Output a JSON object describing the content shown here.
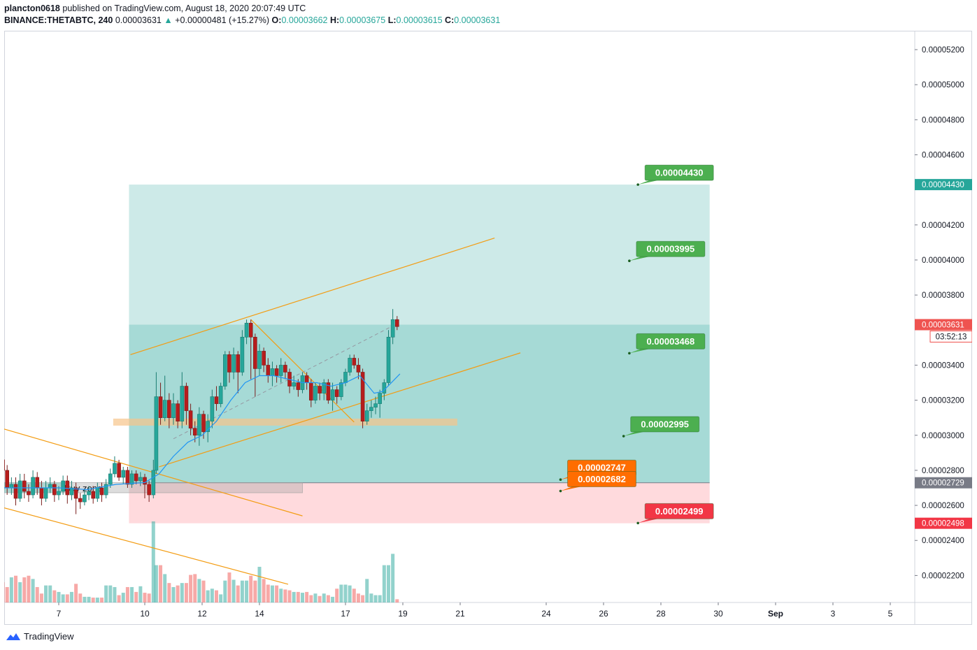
{
  "header": {
    "line1_user": "plancton0618",
    "line1_rest": " published on TradingView.com, August 18, 2020 20:07:49 UTC",
    "symbol": "BINANCE:THETABTC, 240",
    "last": "0.00003631",
    "arrow": "▲",
    "change": "+0.00000481 (+15.27%)",
    "o_label": "O:",
    "o_value": "0.00003662",
    "h_label": "H:",
    "h_value": "0.00003675",
    "l_label": "L:",
    "l_value": "0.00003615",
    "c_label": "C:",
    "c_value": "0.00003631"
  },
  "footer": {
    "brand": "TradingView",
    "logo_icon": "tradingview-logo-icon"
  },
  "colors": {
    "up": "#26a69a",
    "down": "#ef5350",
    "ema": "#2196f3",
    "channel": "#f39c12",
    "target_zone": "#b2dfdb",
    "profit_zone": "#80cbc4",
    "stop_zone": "#ffcdd2",
    "label_green": "#4caf50",
    "label_orange": "#ff6d00",
    "label_red": "#f23645"
  },
  "chart_data": {
    "type": "candlestick",
    "price_axis": {
      "ticks": [
        "0.00005200",
        "0.00005000",
        "0.00004800",
        "0.00004600",
        "0.00004200",
        "0.00004000",
        "0.00003800",
        "0.00003400",
        "0.00003200",
        "0.00003000",
        "0.00002800",
        "0.00002600",
        "0.00002400",
        "0.00002200"
      ],
      "ylim": [
        2e-05,
        5.35e-05
      ]
    },
    "time_axis": {
      "ticks": [
        {
          "label": "7",
          "day": 7
        },
        {
          "label": "10",
          "day": 10
        },
        {
          "label": "12",
          "day": 12
        },
        {
          "label": "14",
          "day": 14
        },
        {
          "label": "17",
          "day": 17
        },
        {
          "label": "19",
          "day": 19
        },
        {
          "label": "21",
          "day": 21
        },
        {
          "label": "24",
          "day": 24
        },
        {
          "label": "26",
          "day": 26
        },
        {
          "label": "28",
          "day": 28
        },
        {
          "label": "30",
          "day": 30
        },
        {
          "label": "Sep",
          "day": 32
        },
        {
          "label": "3",
          "day": 34
        },
        {
          "label": "5",
          "day": 36
        }
      ]
    },
    "price_tags": [
      {
        "label": "0.00004430",
        "price": 4.43e-05,
        "color": "#26a69a"
      },
      {
        "label": "0.00003631",
        "price": 3.631e-05,
        "color": "#ef5350",
        "countdown": "03:52:13"
      },
      {
        "label": "0.00002729",
        "price": 2.729e-05,
        "color": "#787b86"
      },
      {
        "label": "0.00002498",
        "price": 2.498e-05,
        "color": "#f23645"
      }
    ],
    "callouts": [
      {
        "label": "0.00004430",
        "price": 4.43e-05,
        "day": 27.2,
        "color": "#4caf50"
      },
      {
        "label": "0.00003995",
        "price": 3.995e-05,
        "day": 26.9,
        "color": "#4caf50"
      },
      {
        "label": "0.00003468",
        "price": 3.468e-05,
        "day": 26.9,
        "color": "#4caf50"
      },
      {
        "label": "0.00002995",
        "price": 2.995e-05,
        "day": 26.7,
        "color": "#4caf50"
      },
      {
        "label": "0.00002747",
        "price": 2.747e-05,
        "day": 24.5,
        "color": "#ff6d00"
      },
      {
        "label": "0.00002682",
        "price": 2.682e-05,
        "day": 24.5,
        "color": "#ff6d00"
      },
      {
        "label": "0.00002499",
        "price": 2.499e-05,
        "day": 27.2,
        "color": "#f23645"
      }
    ],
    "zones": [
      {
        "kind": "target",
        "from_day": 9.45,
        "to_day": 29.7,
        "low": 3.631e-05,
        "high": 4.43e-05
      },
      {
        "kind": "profit",
        "from_day": 9.45,
        "to_day": 29.7,
        "low": 2.729e-05,
        "high": 3.631e-05
      },
      {
        "kind": "stop",
        "from_day": 9.45,
        "to_day": 29.7,
        "low": 2.498e-05,
        "high": 2.729e-05
      },
      {
        "kind": "support",
        "from_day": 8.9,
        "to_day": 20.9,
        "low": 3.055e-05,
        "high": 3.095e-05
      }
    ],
    "buy_zone": {
      "label": "Buy zone",
      "from_day": 5.0,
      "to_day": 15.5,
      "low": 2.672e-05,
      "high": 2.73e-05
    },
    "trendlines": [
      {
        "from": [
          5.0,
          3.04e-05
        ],
        "to": [
          15.5,
          2.54e-05
        ]
      },
      {
        "from": [
          5.0,
          2.59e-05
        ],
        "to": [
          15.0,
          2.15e-05
        ]
      },
      {
        "from": [
          9.5,
          3.46e-05
        ],
        "to": [
          22.2,
          4.125e-05
        ]
      },
      {
        "from": [
          10.5,
          2.82e-05
        ],
        "to": [
          23.1,
          3.47e-05
        ]
      },
      {
        "from": [
          13.7,
          3.66e-05
        ],
        "to": [
          17.3,
          3.075e-05
        ]
      }
    ],
    "dashed_line": {
      "from": [
        11.0,
        2.98e-05
      ],
      "to": [
        18.6,
        3.62e-05
      ]
    },
    "candles": [
      [
        5.05,
        2.86,
        2.8,
        2.9,
        2.72
      ],
      [
        5.2,
        2.8,
        2.7,
        2.83,
        2.66
      ],
      [
        5.35,
        2.7,
        2.72,
        2.76,
        2.66
      ],
      [
        5.5,
        2.72,
        2.64,
        2.76,
        2.6
      ],
      [
        5.65,
        2.64,
        2.74,
        2.78,
        2.62
      ],
      [
        5.8,
        2.74,
        2.68,
        2.78,
        2.64
      ],
      [
        5.95,
        2.68,
        2.66,
        2.72,
        2.62
      ],
      [
        6.1,
        2.66,
        2.76,
        2.8,
        2.64
      ],
      [
        6.25,
        2.76,
        2.7,
        2.79,
        2.66
      ],
      [
        6.4,
        2.7,
        2.64,
        2.74,
        2.6
      ],
      [
        6.55,
        2.64,
        2.7,
        2.74,
        2.62
      ],
      [
        6.7,
        2.7,
        2.72,
        2.76,
        2.67
      ],
      [
        6.85,
        2.72,
        2.66,
        2.74,
        2.62
      ],
      [
        7.0,
        2.66,
        2.68,
        2.71,
        2.63
      ],
      [
        7.15,
        2.68,
        2.74,
        2.77,
        2.66
      ],
      [
        7.3,
        2.74,
        2.66,
        2.77,
        2.61
      ],
      [
        7.45,
        2.66,
        2.7,
        2.74,
        2.63
      ],
      [
        7.6,
        2.7,
        2.64,
        2.73,
        2.55
      ],
      [
        7.75,
        2.64,
        2.62,
        2.67,
        2.58
      ],
      [
        7.9,
        2.62,
        2.66,
        2.69,
        2.6
      ],
      [
        8.05,
        2.66,
        2.68,
        2.71,
        2.63
      ],
      [
        8.2,
        2.68,
        2.64,
        2.71,
        2.61
      ],
      [
        8.35,
        2.64,
        2.7,
        2.73,
        2.62
      ],
      [
        8.5,
        2.7,
        2.66,
        2.73,
        2.62
      ],
      [
        8.65,
        2.66,
        2.72,
        2.75,
        2.64
      ],
      [
        8.8,
        2.72,
        2.78,
        2.81,
        2.7
      ],
      [
        8.95,
        2.78,
        2.84,
        2.88,
        2.76
      ],
      [
        9.1,
        2.84,
        2.76,
        2.86,
        2.74
      ],
      [
        9.25,
        2.76,
        2.8,
        2.82,
        2.72
      ],
      [
        9.4,
        2.8,
        2.72,
        2.82,
        2.7
      ],
      [
        9.55,
        2.72,
        2.78,
        2.8,
        2.7
      ],
      [
        9.7,
        2.78,
        2.74,
        2.8,
        2.72
      ],
      [
        9.85,
        2.74,
        2.76,
        2.79,
        2.71
      ],
      [
        10.0,
        2.76,
        2.72,
        2.78,
        2.64
      ],
      [
        10.15,
        2.72,
        2.66,
        2.74,
        2.62
      ],
      [
        10.3,
        2.66,
        2.8,
        2.86,
        2.64
      ],
      [
        10.4,
        2.8,
        3.22,
        3.36,
        2.78
      ],
      [
        10.55,
        3.22,
        3.1,
        3.3,
        3.06
      ],
      [
        10.7,
        3.1,
        3.2,
        3.34,
        3.08
      ],
      [
        10.85,
        3.2,
        3.1,
        3.24,
        3.04
      ],
      [
        11.0,
        3.1,
        3.18,
        3.24,
        3.06
      ],
      [
        11.15,
        3.18,
        3.08,
        3.2,
        3.04
      ],
      [
        11.3,
        3.08,
        3.28,
        3.36,
        3.04
      ],
      [
        11.45,
        3.28,
        3.14,
        3.3,
        3.06
      ],
      [
        11.6,
        3.14,
        3.04,
        3.18,
        3.0
      ],
      [
        11.75,
        3.04,
        3.0,
        3.08,
        2.96
      ],
      [
        11.9,
        3.0,
        3.12,
        3.16,
        2.94
      ],
      [
        12.05,
        3.12,
        3.02,
        3.14,
        2.98
      ],
      [
        12.2,
        3.02,
        3.08,
        3.12,
        2.96
      ],
      [
        12.35,
        3.08,
        3.22,
        3.26,
        3.04
      ],
      [
        12.5,
        3.22,
        3.18,
        3.28,
        3.14
      ],
      [
        12.65,
        3.18,
        3.28,
        3.3,
        3.16
      ],
      [
        12.8,
        3.28,
        3.46,
        3.48,
        3.26
      ],
      [
        12.95,
        3.46,
        3.36,
        3.48,
        3.3
      ],
      [
        13.1,
        3.36,
        3.46,
        3.5,
        3.32
      ],
      [
        13.25,
        3.46,
        3.36,
        3.48,
        3.24
      ],
      [
        13.4,
        3.36,
        3.56,
        3.6,
        3.34
      ],
      [
        13.55,
        3.56,
        3.64,
        3.66,
        3.52
      ],
      [
        13.7,
        3.64,
        3.56,
        3.66,
        3.32
      ],
      [
        13.85,
        3.56,
        3.38,
        3.58,
        3.22
      ],
      [
        14.0,
        3.38,
        3.48,
        3.52,
        3.34
      ],
      [
        14.15,
        3.48,
        3.4,
        3.5,
        3.36
      ],
      [
        14.3,
        3.4,
        3.34,
        3.44,
        3.3
      ],
      [
        14.45,
        3.34,
        3.38,
        3.42,
        3.28
      ],
      [
        14.6,
        3.38,
        3.34,
        3.4,
        3.3
      ],
      [
        14.75,
        3.34,
        3.4,
        3.44,
        3.3
      ],
      [
        14.9,
        3.4,
        3.36,
        3.42,
        3.32
      ],
      [
        15.05,
        3.36,
        3.28,
        3.38,
        3.24
      ],
      [
        15.2,
        3.28,
        3.3,
        3.34,
        3.26
      ],
      [
        15.35,
        3.3,
        3.26,
        3.32,
        3.22
      ],
      [
        15.5,
        3.26,
        3.34,
        3.36,
        3.24
      ],
      [
        15.65,
        3.34,
        3.3,
        3.36,
        3.26
      ],
      [
        15.8,
        3.3,
        3.2,
        3.32,
        3.16
      ],
      [
        15.95,
        3.2,
        3.28,
        3.3,
        3.18
      ],
      [
        16.1,
        3.28,
        3.24,
        3.3,
        3.2
      ],
      [
        16.25,
        3.24,
        3.3,
        3.32,
        3.2
      ],
      [
        16.4,
        3.3,
        3.2,
        3.32,
        3.18
      ],
      [
        16.55,
        3.2,
        3.26,
        3.3,
        3.14
      ],
      [
        16.7,
        3.26,
        3.22,
        3.28,
        3.18
      ],
      [
        16.85,
        3.22,
        3.3,
        3.32,
        3.2
      ],
      [
        17.0,
        3.3,
        3.36,
        3.38,
        3.28
      ],
      [
        17.15,
        3.36,
        3.44,
        3.46,
        3.34
      ],
      [
        17.3,
        3.44,
        3.4,
        3.46,
        3.38
      ],
      [
        17.45,
        3.4,
        3.36,
        3.44,
        3.32
      ],
      [
        17.6,
        3.36,
        3.08,
        3.38,
        3.04
      ],
      [
        17.75,
        3.08,
        3.14,
        3.18,
        3.06
      ],
      [
        17.9,
        3.14,
        3.16,
        3.2,
        3.1
      ],
      [
        18.05,
        3.16,
        3.18,
        3.22,
        3.12
      ],
      [
        18.2,
        3.18,
        3.24,
        3.26,
        3.1
      ],
      [
        18.35,
        3.24,
        3.3,
        3.32,
        3.2
      ],
      [
        18.5,
        3.3,
        3.56,
        3.6,
        3.28
      ],
      [
        18.65,
        3.56,
        3.66,
        3.72,
        3.52
      ],
      [
        18.8,
        3.66,
        3.62,
        3.68,
        3.6
      ]
    ],
    "ema": [
      [
        5.0,
        2.7
      ],
      [
        6.0,
        2.7
      ],
      [
        7.0,
        2.7
      ],
      [
        8.0,
        2.69
      ],
      [
        9.0,
        2.72
      ],
      [
        10.0,
        2.73
      ],
      [
        10.5,
        2.78
      ],
      [
        11.0,
        2.88
      ],
      [
        11.5,
        2.96
      ],
      [
        12.0,
        3.0
      ],
      [
        12.5,
        3.08
      ],
      [
        13.0,
        3.2
      ],
      [
        13.5,
        3.3
      ],
      [
        14.0,
        3.34
      ],
      [
        14.5,
        3.34
      ],
      [
        15.0,
        3.32
      ],
      [
        15.5,
        3.3
      ],
      [
        16.0,
        3.3
      ],
      [
        16.5,
        3.28
      ],
      [
        17.0,
        3.3
      ],
      [
        17.5,
        3.34
      ],
      [
        18.0,
        3.24
      ],
      [
        18.3,
        3.25
      ],
      [
        18.6,
        3.3
      ],
      [
        18.9,
        3.35
      ]
    ],
    "volume": [
      [
        5.05,
        0.25
      ],
      [
        5.2,
        0.19
      ],
      [
        5.35,
        0.31
      ],
      [
        5.5,
        0.33
      ],
      [
        5.65,
        0.25
      ],
      [
        5.8,
        0.31
      ],
      [
        5.95,
        0.33
      ],
      [
        6.1,
        0.29
      ],
      [
        6.25,
        0.19
      ],
      [
        6.4,
        0.11
      ],
      [
        6.55,
        0.21
      ],
      [
        6.7,
        0.21
      ],
      [
        6.85,
        0.15
      ],
      [
        7.0,
        0.13
      ],
      [
        7.15,
        0.1
      ],
      [
        7.3,
        0.1
      ],
      [
        7.45,
        0.13
      ],
      [
        7.6,
        0.23
      ],
      [
        7.75,
        0.11
      ],
      [
        7.9,
        0.07
      ],
      [
        8.05,
        0.07
      ],
      [
        8.2,
        0.06
      ],
      [
        8.35,
        0.06
      ],
      [
        8.5,
        0.06
      ],
      [
        8.65,
        0.21
      ],
      [
        8.8,
        0.21
      ],
      [
        8.95,
        0.19
      ],
      [
        9.1,
        0.09
      ],
      [
        9.25,
        0.12
      ],
      [
        9.4,
        0.19
      ],
      [
        9.55,
        0.19
      ],
      [
        9.7,
        0.13
      ],
      [
        9.85,
        0.2
      ],
      [
        10.0,
        0.12
      ],
      [
        10.15,
        0.11
      ],
      [
        10.3,
        1.0
      ],
      [
        10.4,
        0.46
      ],
      [
        10.55,
        0.46
      ],
      [
        10.7,
        0.35
      ],
      [
        10.85,
        0.24
      ],
      [
        11.0,
        0.19
      ],
      [
        11.15,
        0.21
      ],
      [
        11.3,
        0.24
      ],
      [
        11.45,
        0.24
      ],
      [
        11.6,
        0.34
      ],
      [
        11.75,
        0.35
      ],
      [
        11.9,
        0.29
      ],
      [
        12.05,
        0.27
      ],
      [
        12.2,
        0.15
      ],
      [
        12.35,
        0.17
      ],
      [
        12.5,
        0.15
      ],
      [
        12.65,
        0.1
      ],
      [
        12.8,
        0.27
      ],
      [
        12.95,
        0.37
      ],
      [
        13.1,
        0.28
      ],
      [
        13.25,
        0.21
      ],
      [
        13.4,
        0.27
      ],
      [
        13.55,
        0.27
      ],
      [
        13.7,
        0.33
      ],
      [
        13.85,
        0.27
      ],
      [
        14.0,
        0.44
      ],
      [
        14.15,
        0.29
      ],
      [
        14.3,
        0.22
      ],
      [
        14.45,
        0.21
      ],
      [
        14.6,
        0.21
      ],
      [
        14.75,
        0.17
      ],
      [
        14.9,
        0.16
      ],
      [
        15.05,
        0.15
      ],
      [
        15.2,
        0.13
      ],
      [
        15.35,
        0.13
      ],
      [
        15.5,
        0.12
      ],
      [
        15.65,
        0.13
      ],
      [
        15.8,
        0.09
      ],
      [
        15.95,
        0.11
      ],
      [
        16.1,
        0.08
      ],
      [
        16.25,
        0.11
      ],
      [
        16.4,
        0.09
      ],
      [
        16.55,
        0.07
      ],
      [
        16.7,
        0.17
      ],
      [
        16.85,
        0.22
      ],
      [
        17.0,
        0.22
      ],
      [
        17.15,
        0.21
      ],
      [
        17.3,
        0.17
      ],
      [
        17.45,
        0.11
      ],
      [
        17.6,
        0.09
      ],
      [
        17.75,
        0.29
      ],
      [
        17.9,
        0.11
      ],
      [
        18.05,
        0.09
      ],
      [
        18.2,
        0.09
      ],
      [
        18.35,
        0.46
      ],
      [
        18.5,
        0.46
      ],
      [
        18.65,
        0.6
      ],
      [
        18.8,
        0.04
      ]
    ]
  }
}
